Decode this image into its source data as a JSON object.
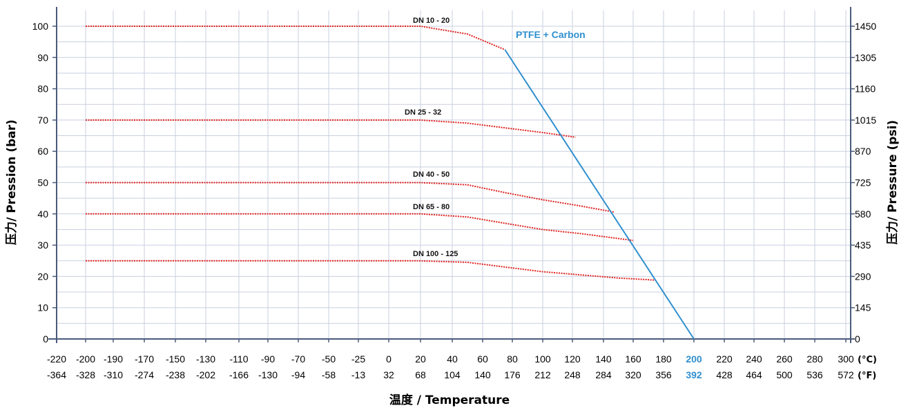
{
  "chart_data": {
    "type": "line",
    "ylabel_left": "压力/ Pression (bar)",
    "ylabel_right": "压力/ Pressure (psi)",
    "xlabel": "温度 / Temperature",
    "x_unit_c": "(°C)",
    "x_unit_f": "(°F)",
    "x_ticks_c": [
      "-220",
      "-200",
      "-190",
      "-170",
      "-150",
      "-130",
      "-110",
      "-90",
      "-70",
      "-50",
      "-25",
      "0",
      "20",
      "40",
      "60",
      "80",
      "100",
      "120",
      "140",
      "160",
      "180",
      "200",
      "220",
      "240",
      "260",
      "280",
      "300"
    ],
    "x_ticks_f": [
      "-364",
      "-328",
      "-310",
      "-274",
      "-238",
      "-202",
      "-166",
      "-130",
      "-94",
      "-58",
      "-13",
      "32",
      "68",
      "104",
      "140",
      "176",
      "212",
      "248",
      "284",
      "320",
      "356",
      "392",
      "428",
      "464",
      "500",
      "536",
      "572"
    ],
    "highlight_tick": "200",
    "y_left_ticks": [
      0,
      10,
      20,
      30,
      40,
      50,
      60,
      70,
      80,
      90,
      100
    ],
    "y_right_ticks": [
      "0",
      "145",
      "290",
      "435",
      "580",
      "725",
      "870",
      "1015",
      "1160",
      "1305",
      "1450"
    ],
    "ylim": [
      0,
      100
    ],
    "series": [
      {
        "name": "DN 10 - 20",
        "color": "#e0201c",
        "style": "dotted",
        "points": [
          [
            -200,
            100
          ],
          [
            20,
            100
          ],
          [
            50,
            97.5
          ],
          [
            75,
            92.5
          ]
        ]
      },
      {
        "name": "DN 25 - 32",
        "color": "#e0201c",
        "style": "dotted",
        "points": [
          [
            -200,
            70
          ],
          [
            20,
            70
          ],
          [
            50,
            69
          ],
          [
            75,
            67.5
          ],
          [
            100,
            66
          ],
          [
            122,
            64.5
          ]
        ]
      },
      {
        "name": "DN 40 - 50",
        "color": "#e0201c",
        "style": "dotted",
        "points": [
          [
            -200,
            50
          ],
          [
            20,
            50
          ],
          [
            50,
            49.3
          ],
          [
            75,
            46.8
          ],
          [
            100,
            44.5
          ],
          [
            122,
            42.8
          ],
          [
            147,
            40.6
          ]
        ]
      },
      {
        "name": "DN 65 - 80",
        "color": "#e0201c",
        "style": "dotted",
        "points": [
          [
            -200,
            40
          ],
          [
            20,
            40
          ],
          [
            50,
            39
          ],
          [
            75,
            37
          ],
          [
            100,
            35
          ],
          [
            125,
            33.7
          ],
          [
            160,
            31.5
          ]
        ]
      },
      {
        "name": "DN 100 - 125",
        "color": "#e0201c",
        "style": "dotted",
        "points": [
          [
            -200,
            25
          ],
          [
            20,
            25
          ],
          [
            50,
            24.5
          ],
          [
            75,
            23
          ],
          [
            100,
            21.5
          ],
          [
            125,
            20.5
          ],
          [
            150,
            19.5
          ],
          [
            175,
            18.8
          ]
        ]
      },
      {
        "name": "PTFE + Carbon",
        "color": "#2f8fce",
        "style": "solid",
        "points": [
          [
            75,
            92.5
          ],
          [
            200,
            0
          ]
        ]
      }
    ],
    "grid": true
  }
}
